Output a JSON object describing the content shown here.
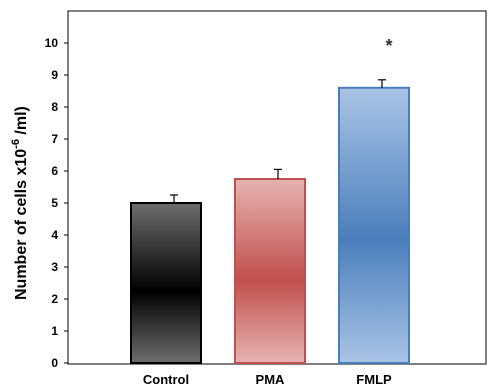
{
  "chart_data": {
    "type": "bar",
    "title": "",
    "xlabel": "",
    "ylabel_parts": {
      "base": "Number of cells x",
      "mantissa": "10",
      "exponent": "-6",
      "unit": " /ml)"
    },
    "y_ticks": [
      "0",
      "1",
      "2",
      "3",
      "4",
      "5",
      "6",
      "7",
      "8",
      "9",
      "10"
    ],
    "ylim": [
      0,
      11
    ],
    "categories": [
      "Control",
      "PMA",
      "FMLP"
    ],
    "values": [
      5.0,
      5.75,
      8.6
    ],
    "errors": [
      0.25,
      0.3,
      0.25
    ],
    "annotations": [
      {
        "category": "FMLP",
        "text": "*"
      }
    ],
    "bar_colors": [
      {
        "edge": "#000000",
        "dark": "#000000",
        "light": "#6e6e6e"
      },
      {
        "edge": "#c0504d",
        "dark": "#c0504d",
        "light": "#e6b3b2"
      },
      {
        "edge": "#4a7ebb",
        "dark": "#4a7ebb",
        "light": "#aac4e6"
      }
    ],
    "grid": false,
    "legend": "none"
  }
}
